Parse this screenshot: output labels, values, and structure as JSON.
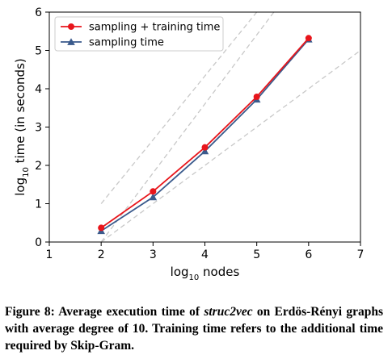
{
  "chart_data": {
    "type": "line",
    "xlabel_main": "log",
    "xlabel_sub": "10",
    "xlabel_rest": " nodes",
    "ylabel_main": "log",
    "ylabel_sub": "10",
    "ylabel_rest": " time (in seconds)",
    "xlim": [
      1,
      7
    ],
    "ylim": [
      0,
      6
    ],
    "xticks": [
      1,
      2,
      3,
      4,
      5,
      6,
      7
    ],
    "yticks": [
      0,
      1,
      2,
      3,
      4,
      5,
      6
    ],
    "grid": false,
    "legend_position": "top-left",
    "x": [
      2,
      3,
      4,
      5,
      6
    ],
    "series": [
      {
        "name": "sampling + training time",
        "values": [
          0.37,
          1.32,
          2.47,
          3.79,
          5.32
        ],
        "color": "#e8151b",
        "marker": "circle"
      },
      {
        "name": "sampling time",
        "values": [
          0.29,
          1.17,
          2.37,
          3.72,
          5.29
        ],
        "color": "#3a5a8c",
        "marker": "triangle"
      }
    ],
    "reference_lines": [
      {
        "from": [
          2,
          1
        ],
        "to": [
          5,
          6
        ],
        "style": "dashed",
        "color": "#c8c8c8"
      },
      {
        "from": [
          2,
          0
        ],
        "to": [
          7,
          5
        ],
        "style": "dashed",
        "color": "#c8c8c8"
      },
      {
        "from": [
          2,
          0
        ],
        "to": [
          5.33,
          6
        ],
        "style": "dashed",
        "color": "#c8c8c8"
      }
    ]
  },
  "caption": {
    "prefix": "Figure 8: Average execution time of ",
    "emph": "struc2vec",
    "suffix": " on Erdös-Rényi graphs with average degree of 10. Training time refers to the additional time required by Skip-Gram."
  }
}
